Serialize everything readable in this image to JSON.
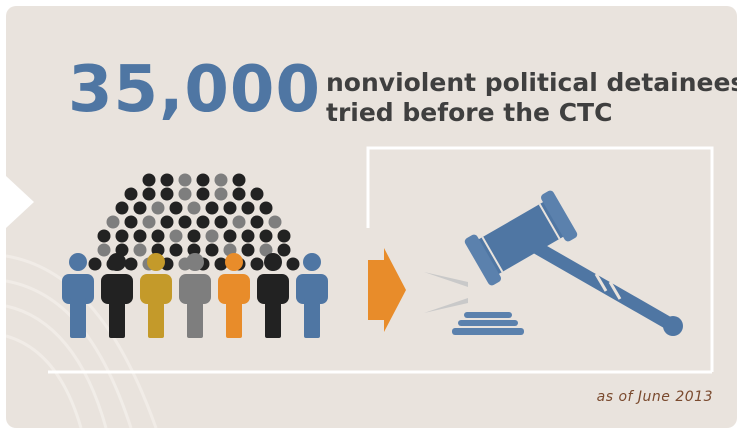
{
  "headline": {
    "number": "35,000",
    "line1": "nonviolent political detainees",
    "line2": "tried before the CTC"
  },
  "footnote": "as of June 2013",
  "icons": {
    "crowd": "crowd-icon",
    "arrow": "arrow-right-icon",
    "gavel": "gavel-icon"
  },
  "colors": {
    "background": "#e9e3dd",
    "accent_blue": "#4f76a3",
    "orange": "#e88c2a",
    "mustard": "#c49a2a",
    "dark": "#222222",
    "gray": "#7e7e7e"
  }
}
